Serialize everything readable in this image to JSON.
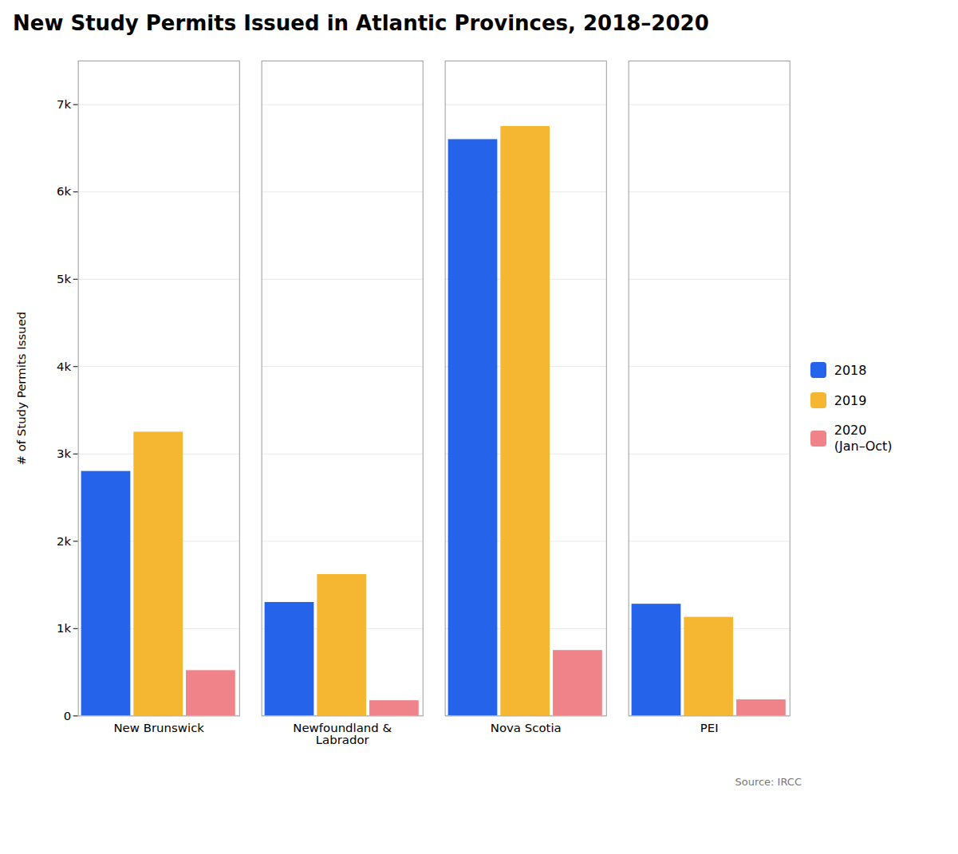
{
  "chart_data": {
    "type": "bar",
    "title": "New Study Permits Issued in Atlantic Provinces, 2018–2020",
    "categories": [
      "New Brunswick",
      "Newfoundland &\nLabrador",
      "Nova Scotia",
      "PEI"
    ],
    "series": [
      {
        "name": "2018",
        "color": "#2563EB",
        "values": [
          2800,
          1300,
          6600,
          1280
        ]
      },
      {
        "name": "2019",
        "color": "#F5B731",
        "values": [
          3250,
          1620,
          6750,
          1130
        ]
      },
      {
        "name": "2020\n(Jan–Oct)",
        "color": "#F0828A",
        "values": [
          520,
          175,
          750,
          185
        ]
      }
    ],
    "ylabel": "# of Study Permits Issued",
    "ylim": [
      0,
      7500
    ],
    "yticks": [
      0,
      {
        "value": 1000,
        "label": "1k"
      },
      {
        "value": 2000,
        "label": "2k"
      },
      {
        "value": 3000,
        "label": "3k"
      },
      {
        "value": 4000,
        "label": "4k"
      },
      {
        "value": 5000,
        "label": "5k"
      },
      {
        "value": 6000,
        "label": "6k"
      },
      {
        "value": 7000,
        "label": "7k"
      }
    ],
    "grid": true,
    "legend": "right",
    "annotations": [
      "Source: IRCC"
    ]
  }
}
